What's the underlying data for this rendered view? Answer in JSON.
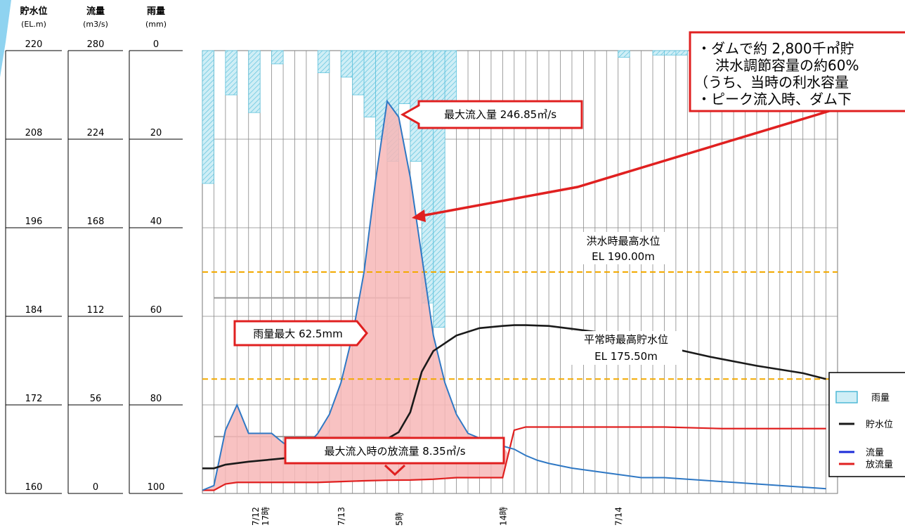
{
  "chart_data": {
    "type": "hydrograph",
    "axes": {
      "storage_level": {
        "label": "貯水位",
        "unit": "(EL.m)",
        "ticks": [
          "220",
          "208",
          "196",
          "184",
          "172",
          "160"
        ],
        "range": [
          160,
          220
        ]
      },
      "flow": {
        "label": "流量",
        "unit": "(m3/s)",
        "ticks": [
          "280",
          "224",
          "168",
          "112",
          "56",
          "0"
        ],
        "range": [
          0,
          280
        ]
      },
      "rainfall": {
        "label": "雨量",
        "unit": "(mm)",
        "ticks": [
          "0",
          "20",
          "40",
          "60",
          "80",
          "100"
        ],
        "range": [
          0,
          100
        ],
        "inverted": true
      }
    },
    "x_axis": {
      "unit": "hour index from 7/12 12時",
      "range": [
        0,
        55
      ],
      "tick_labels": [
        {
          "x": 5,
          "lines": [
            "7/12",
            "17時"
          ]
        },
        {
          "x": 12,
          "lines": [
            "7/13"
          ]
        },
        {
          "x": 17,
          "lines": [
            "5時"
          ]
        },
        {
          "x": 26,
          "lines": [
            "14時"
          ]
        },
        {
          "x": 36,
          "lines": [
            "7/14"
          ]
        }
      ]
    },
    "series": {
      "rainfall": {
        "name": "雨量",
        "color": "#9fdcec",
        "values": [
          30,
          0,
          10,
          0,
          14,
          0,
          3,
          0,
          0,
          0,
          5,
          0,
          6,
          10,
          15,
          20,
          25,
          12,
          25,
          57,
          62.5,
          15,
          0,
          0,
          0,
          0,
          0,
          0,
          0,
          0,
          0,
          0,
          0,
          0,
          0,
          0,
          1.5,
          0,
          0,
          1,
          1,
          1,
          0,
          0,
          0,
          0,
          0,
          0,
          0,
          0,
          0,
          0,
          0,
          0
        ]
      },
      "storage_level": {
        "name": "貯水位",
        "color": "#1a1a1a",
        "x": [
          0,
          1,
          2,
          4,
          6,
          8,
          10,
          12,
          13,
          14,
          15,
          16,
          17,
          18,
          19,
          20,
          22,
          24,
          26,
          27,
          28,
          30,
          32,
          34,
          36,
          38,
          40,
          42,
          44,
          48,
          50,
          52,
          54
        ],
        "values": [
          163.4,
          163.4,
          163.9,
          164.3,
          164.6,
          164.9,
          165.2,
          165.5,
          165.8,
          166.1,
          166.7,
          167.4,
          168.3,
          171.0,
          176.5,
          179.3,
          181.4,
          182.4,
          182.7,
          182.8,
          182.8,
          182.7,
          182.3,
          181.9,
          181.3,
          180.7,
          179.9,
          179.2,
          178.5,
          177.3,
          176.8,
          176.3,
          175.5
        ]
      },
      "inflow": {
        "name": "流量",
        "color": "#2f78c4",
        "x": [
          0,
          1,
          2,
          3,
          4,
          5,
          6,
          7,
          8,
          9,
          10,
          11,
          12,
          13,
          14,
          15,
          16,
          17,
          18,
          19,
          20,
          21,
          22,
          23,
          24,
          25,
          26,
          27,
          28,
          29,
          30,
          32,
          34,
          36,
          38,
          40,
          42,
          44,
          46,
          48,
          50,
          52,
          54
        ],
        "values": [
          2,
          5,
          40,
          56,
          38,
          38,
          38,
          32,
          28,
          30,
          38,
          50,
          70,
          100,
          140,
          198,
          248,
          238,
          200,
          150,
          100,
          70,
          50,
          38,
          35,
          33,
          30,
          28,
          24,
          21,
          19,
          16,
          14,
          12,
          10,
          10,
          9,
          8,
          7,
          6,
          5,
          4,
          3
        ]
      },
      "outflow": {
        "name": "放流量",
        "color": "#e02020",
        "x": [
          0,
          0.5,
          1,
          2,
          3,
          4,
          6,
          8,
          10,
          12,
          14,
          16,
          18,
          20,
          22,
          24,
          25,
          26,
          26.5,
          27,
          28,
          30,
          35,
          40,
          45,
          50,
          54
        ],
        "values": [
          2,
          2,
          2,
          6,
          7,
          7,
          7,
          7,
          7,
          7.5,
          8,
          8.35,
          8.5,
          9,
          10,
          10,
          10,
          10,
          25,
          40,
          42,
          42,
          42,
          42,
          41,
          41,
          41
        ]
      }
    },
    "reference_lines": [
      {
        "name": "洪水時最高水位",
        "label": "洪水時最高水位",
        "value_label": "EL 190.00m",
        "level": 190.0
      },
      {
        "name": "平常時最高貯水位",
        "label": "平常時最高貯水位",
        "value_label": "EL 175.50m",
        "level": 175.5
      }
    ],
    "annotations": {
      "max_inflow": "最大流入量 246.85㎥/s",
      "max_rain": "雨量最大 62.5mm",
      "release_at_peak": "最大流入時の放流量 8.35㎥/s",
      "summary_line1": "・ダムで約 2,800千㎥貯",
      "summary_line2": "洪水調節容量の約60%",
      "summary_line3": "（うち、当時の利水容量",
      "summary_line4": "・ピーク流入時、ダム下"
    },
    "legend": {
      "position": "bottom-right",
      "items": [
        "雨量",
        "貯水位",
        "流量",
        "放流量"
      ]
    }
  }
}
